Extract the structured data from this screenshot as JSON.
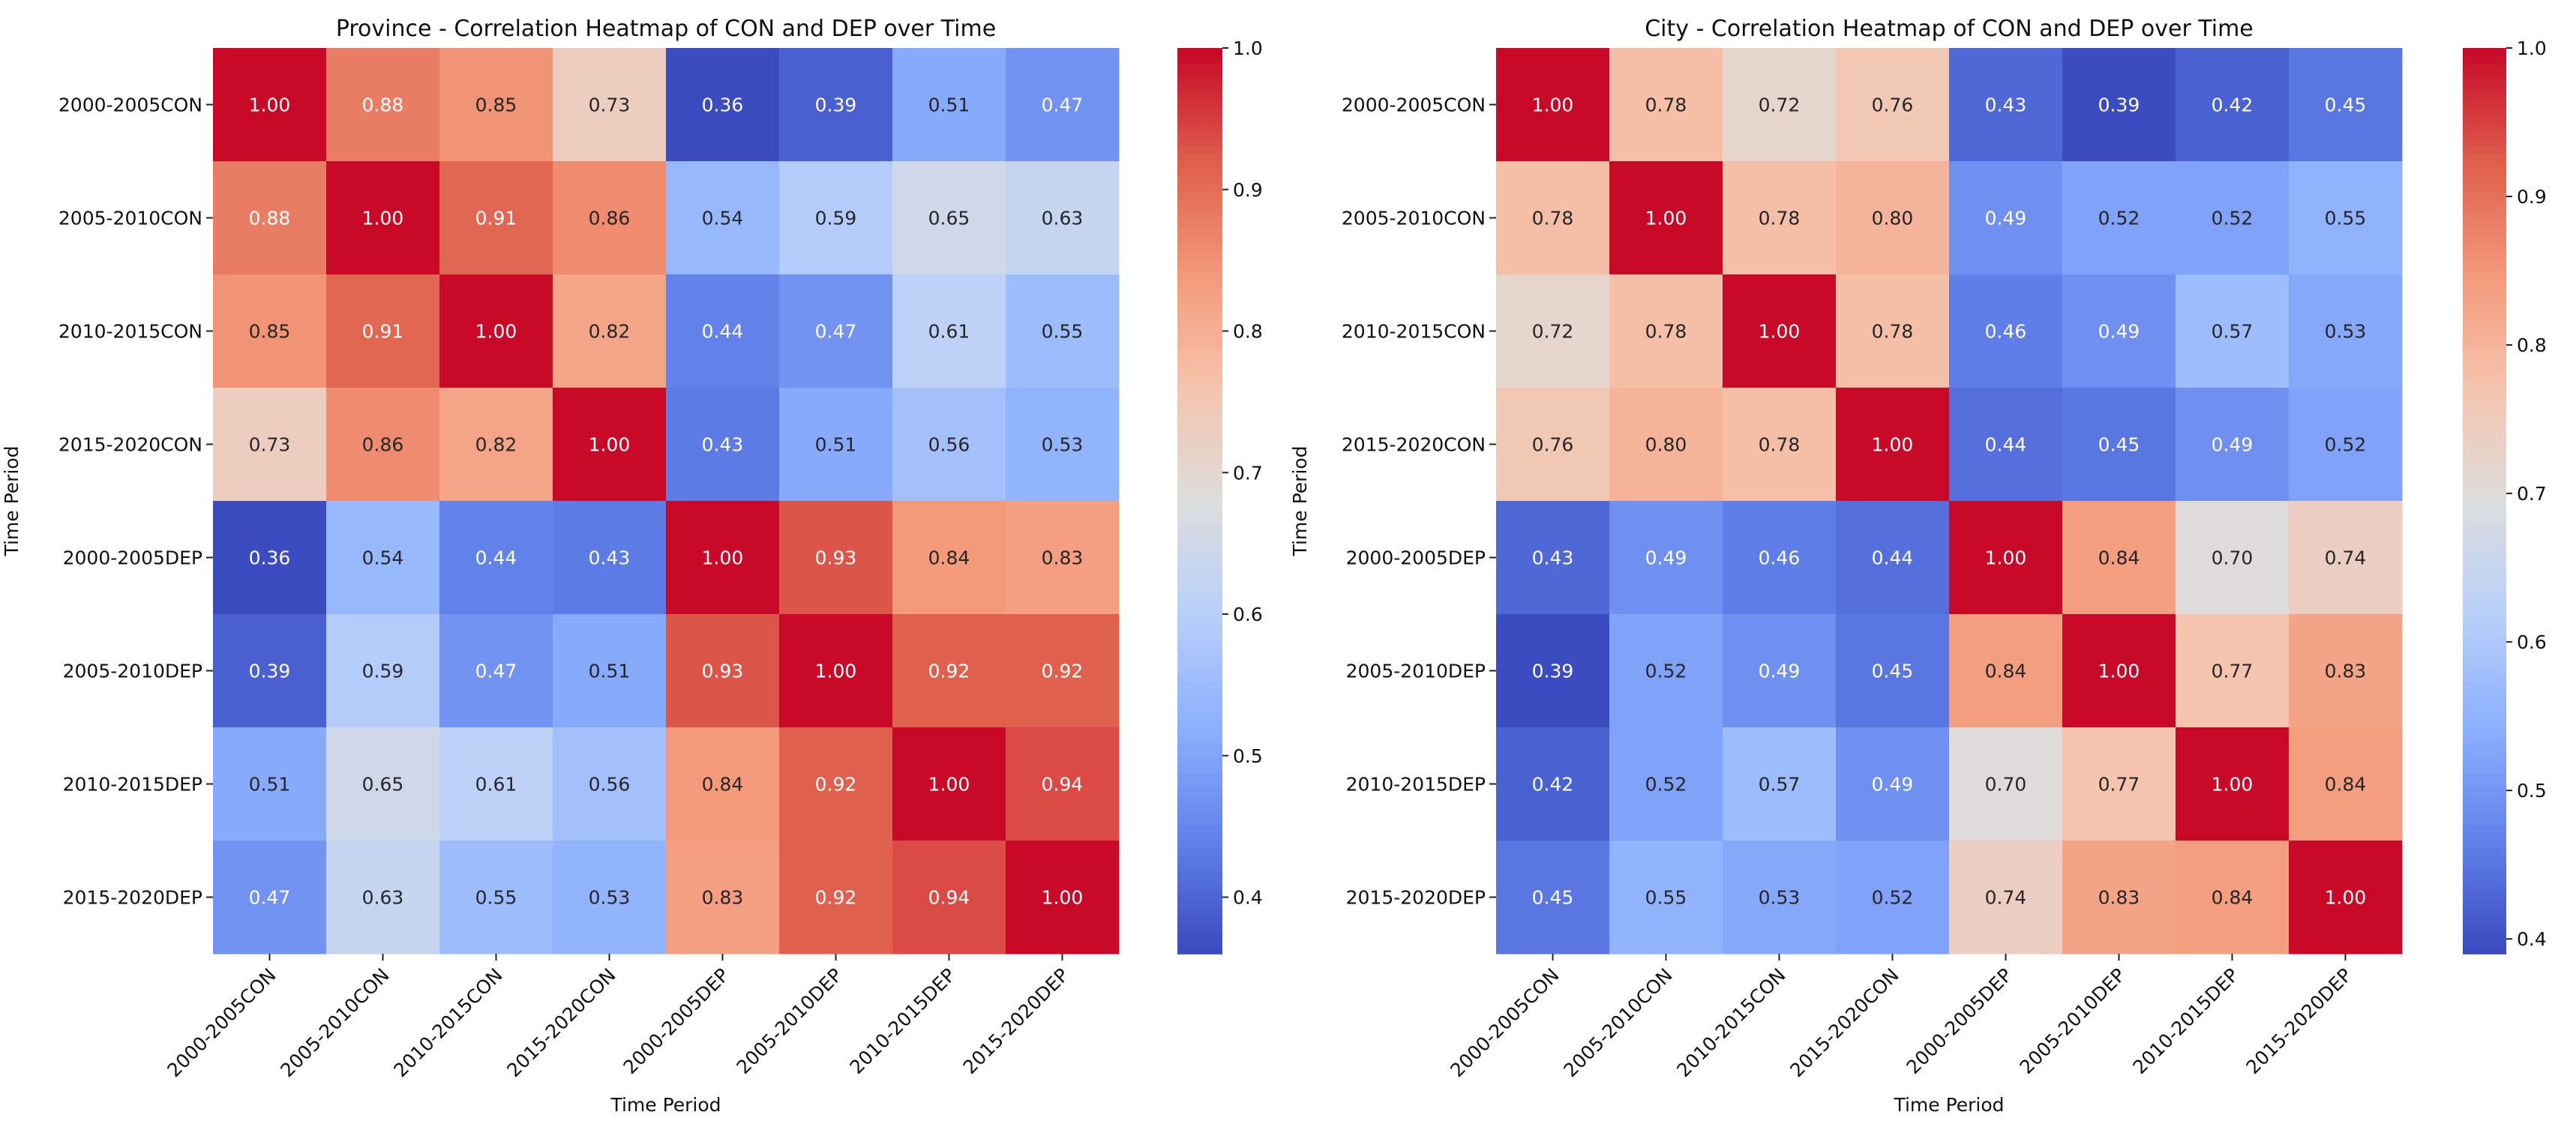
{
  "chart_data": [
    {
      "type": "heatmap",
      "title": "Province - Correlation Heatmap of CON and DEP over Time",
      "xlabel": "Time Period",
      "ylabel": "Time Period",
      "colormap": "coolwarm",
      "vmin": 0.36,
      "vmax": 1.0,
      "colorbar_ticks": [
        "0.4",
        "0.5",
        "0.6",
        "0.7",
        "0.8",
        "0.9",
        "1.0"
      ],
      "categories": [
        "2000-2005CON",
        "2005-2010CON",
        "2010-2015CON",
        "2015-2020CON",
        "2000-2005DEP",
        "2005-2010DEP",
        "2010-2015DEP",
        "2015-2020DEP"
      ],
      "values": [
        [
          1.0,
          0.88,
          0.85,
          0.73,
          0.36,
          0.39,
          0.51,
          0.47
        ],
        [
          0.88,
          1.0,
          0.91,
          0.86,
          0.54,
          0.59,
          0.65,
          0.63
        ],
        [
          0.85,
          0.91,
          1.0,
          0.82,
          0.44,
          0.47,
          0.61,
          0.55
        ],
        [
          0.73,
          0.86,
          0.82,
          1.0,
          0.43,
          0.51,
          0.56,
          0.53
        ],
        [
          0.36,
          0.54,
          0.44,
          0.43,
          1.0,
          0.93,
          0.84,
          0.83
        ],
        [
          0.39,
          0.59,
          0.47,
          0.51,
          0.93,
          1.0,
          0.92,
          0.92
        ],
        [
          0.51,
          0.65,
          0.61,
          0.56,
          0.84,
          0.92,
          1.0,
          0.94
        ],
        [
          0.47,
          0.63,
          0.55,
          0.53,
          0.83,
          0.92,
          0.94,
          1.0
        ]
      ]
    },
    {
      "type": "heatmap",
      "title": "City - Correlation Heatmap of CON and DEP over Time",
      "xlabel": "Time Period",
      "ylabel": "Time Period",
      "colormap": "coolwarm",
      "vmin": 0.39,
      "vmax": 1.0,
      "colorbar_ticks": [
        "0.4",
        "0.5",
        "0.6",
        "0.7",
        "0.8",
        "0.9",
        "1.0"
      ],
      "categories": [
        "2000-2005CON",
        "2005-2010CON",
        "2010-2015CON",
        "2015-2020CON",
        "2000-2005DEP",
        "2005-2010DEP",
        "2010-2015DEP",
        "2015-2020DEP"
      ],
      "values": [
        [
          1.0,
          0.78,
          0.72,
          0.76,
          0.43,
          0.39,
          0.42,
          0.45
        ],
        [
          0.78,
          1.0,
          0.78,
          0.8,
          0.49,
          0.52,
          0.52,
          0.55
        ],
        [
          0.72,
          0.78,
          1.0,
          0.78,
          0.46,
          0.49,
          0.57,
          0.53
        ],
        [
          0.76,
          0.8,
          0.78,
          1.0,
          0.44,
          0.45,
          0.49,
          0.52
        ],
        [
          0.43,
          0.49,
          0.46,
          0.44,
          1.0,
          0.84,
          0.7,
          0.74
        ],
        [
          0.39,
          0.52,
          0.49,
          0.45,
          0.84,
          1.0,
          0.77,
          0.83
        ],
        [
          0.42,
          0.52,
          0.57,
          0.49,
          0.7,
          0.77,
          1.0,
          0.84
        ],
        [
          0.45,
          0.55,
          0.53,
          0.52,
          0.74,
          0.83,
          0.84,
          1.0
        ]
      ]
    }
  ]
}
